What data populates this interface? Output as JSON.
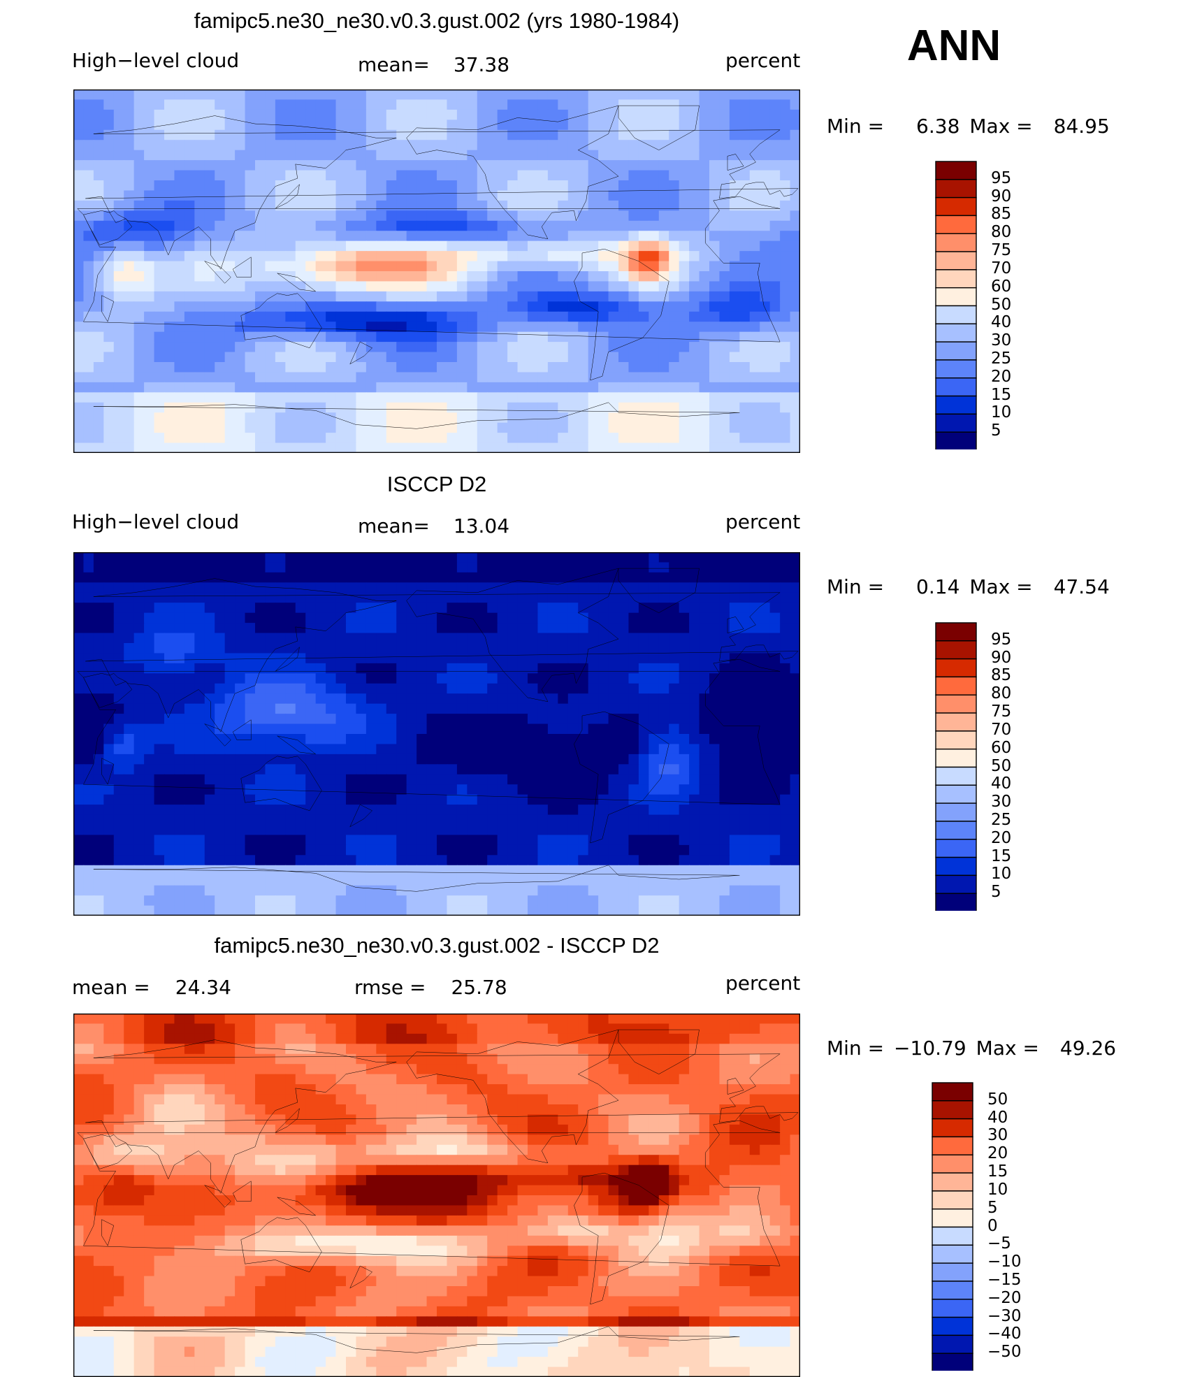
{
  "season": "ANN",
  "colors": {
    "standard_scale": [
      "#00007a",
      "#0017b0",
      "#0033d8",
      "#1b4ef0",
      "#3b66f5",
      "#5d84fa",
      "#83a2fc",
      "#a7c0ff",
      "#c8dbff",
      "#e3efff",
      "#fff0e0",
      "#ffd6bd",
      "#ffb597",
      "#ff8f6a",
      "#ff6a3d",
      "#f24914",
      "#d62a00",
      "#a81300",
      "#7a0000"
    ],
    "diff_scale": [
      "#00007a",
      "#0017b0",
      "#0033d8",
      "#1b4ef0",
      "#3b66f5",
      "#5d84fa",
      "#83a2fc",
      "#a7c0ff",
      "#c8dbff",
      "#e3efff",
      "#fff0e0",
      "#ffd6bd",
      "#ffb597",
      "#ff8f6a",
      "#ff6a3d",
      "#f24914",
      "#d62a00",
      "#a81300",
      "#7a0000"
    ],
    "coast": "#000000"
  },
  "chart_data": [
    {
      "type": "heatmap",
      "title": "famipc5.ne30_ne30.v0.3.gust.002 (yrs 1980-1984)",
      "left_label": "High−level cloud",
      "mean_label": "mean=",
      "mean_value": "37.38",
      "units": "percent",
      "min_label": "Min  =",
      "min_value": "6.38",
      "max_label": "Max  =",
      "max_value": "84.95",
      "levels": [
        "95",
        "90",
        "85",
        "80",
        "75",
        "70",
        "60",
        "50",
        "40",
        "30",
        "25",
        "20",
        "15",
        "10",
        "5"
      ],
      "field": "model",
      "value_range": [
        5,
        95
      ]
    },
    {
      "type": "heatmap",
      "title": "ISCCP D2",
      "left_label": "High−level cloud",
      "mean_label": "mean=",
      "mean_value": "13.04",
      "units": "percent",
      "min_label": "Min  =",
      "min_value": "0.14",
      "max_label": "Max  =",
      "max_value": "47.54",
      "levels": [
        "95",
        "90",
        "85",
        "80",
        "75",
        "70",
        "60",
        "50",
        "40",
        "30",
        "25",
        "20",
        "15",
        "10",
        "5"
      ],
      "field": "obs",
      "value_range": [
        5,
        95
      ]
    },
    {
      "type": "heatmap",
      "title": "famipc5.ne30_ne30.v0.3.gust.002 - ISCCP D2",
      "left_label": "mean  =",
      "mean_label": "rmse  =",
      "left_value": "24.34",
      "mean_value": "25.78",
      "units": "percent",
      "min_label": "Min  =",
      "min_value": "−10.79",
      "max_label": "Max  =",
      "max_value": "49.26",
      "levels": [
        "50",
        "40",
        "30",
        "20",
        "15",
        "10",
        "5",
        "0",
        "−5",
        "−10",
        "−15",
        "−20",
        "−30",
        "−40",
        "−50"
      ],
      "field": "diff",
      "value_range": [
        -50,
        50
      ]
    }
  ]
}
